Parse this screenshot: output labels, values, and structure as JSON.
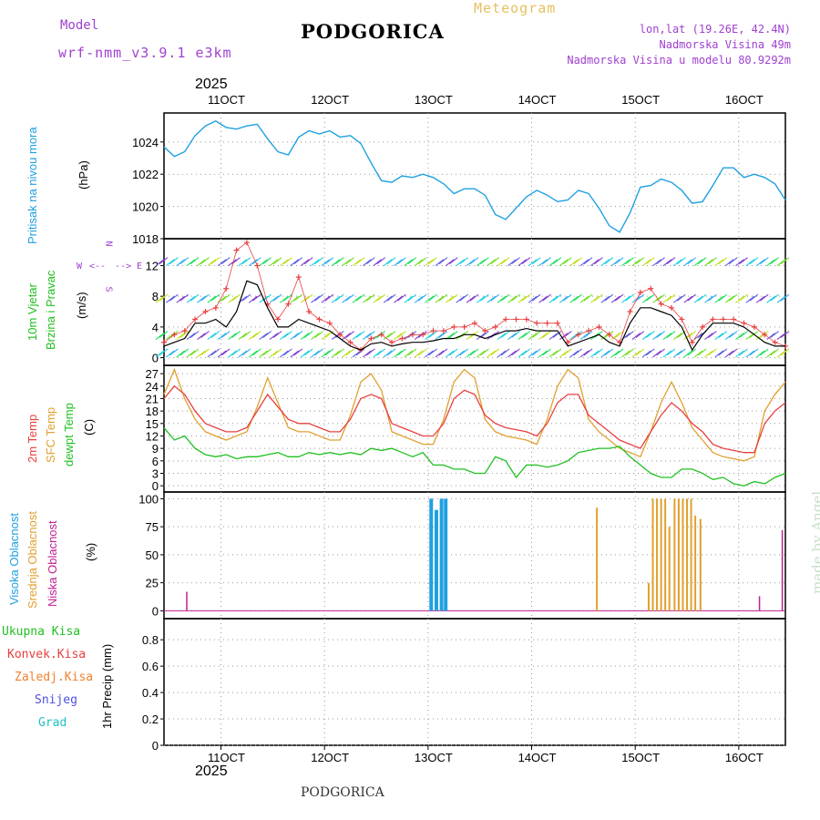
{
  "header": {
    "model_label": "Model",
    "model_name": "wrf-nmm_v3.9.1 e3km",
    "station": "PODGORICA",
    "meteogram": "Meteogram",
    "lonlat": "lon,lat (19.26E, 42.4N)",
    "elevation": "Nadmorska Visina 49m",
    "model_elevation": "Nadmorska Visina u modelu 80.9292m",
    "footer_station": "PODGORICA",
    "credit": "made by Angel",
    "year_top": "2025",
    "year_bottom": "2025"
  },
  "colors": {
    "pressure": "#20a0e0",
    "temp2m": "#e84040",
    "sfc": "#e0a030",
    "dewpt": "#20c020",
    "high_cloud": "#20a0e0",
    "mid_cloud": "#e0a030",
    "low_cloud": "#c02090",
    "wind_obs": "#e84040",
    "wind_model": "#000000",
    "violet": "#a040d0"
  },
  "chart_data": [
    {
      "type": "line",
      "id": "pressure",
      "ylabel": "Pritisak na nivou mora",
      "unit": "(hPa)",
      "ylim": [
        1018,
        1025.8
      ],
      "yticks": [
        1018,
        1020,
        1022,
        1024
      ],
      "xlim": [
        10.45,
        16.45
      ],
      "xticks": [
        {
          "x": 11,
          "label": "11OCT"
        },
        {
          "x": 12,
          "label": "12OCT"
        },
        {
          "x": 13,
          "label": "13OCT"
        },
        {
          "x": 14,
          "label": "14OCT"
        },
        {
          "x": 15,
          "label": "15OCT"
        },
        {
          "x": 16,
          "label": "16OCT"
        }
      ],
      "x": [
        10.45,
        10.55,
        10.65,
        10.75,
        10.85,
        10.95,
        11.05,
        11.15,
        11.25,
        11.35,
        11.45,
        11.55,
        11.65,
        11.75,
        11.85,
        11.95,
        12.05,
        12.15,
        12.25,
        12.35,
        12.45,
        12.55,
        12.65,
        12.75,
        12.85,
        12.95,
        13.05,
        13.15,
        13.25,
        13.35,
        13.45,
        13.55,
        13.65,
        13.75,
        13.85,
        13.95,
        14.05,
        14.15,
        14.25,
        14.35,
        14.45,
        14.55,
        14.65,
        14.75,
        14.85,
        14.95,
        15.05,
        15.15,
        15.25,
        15.35,
        15.45,
        15.55,
        15.65,
        15.75,
        15.85,
        15.95,
        16.05,
        16.15,
        16.25,
        16.35,
        16.45
      ],
      "values": [
        1023.7,
        1023.1,
        1023.4,
        1024.4,
        1025.0,
        1025.3,
        1024.9,
        1024.8,
        1025.0,
        1025.1,
        1024.2,
        1023.4,
        1023.2,
        1024.3,
        1024.7,
        1024.5,
        1024.7,
        1024.3,
        1024.4,
        1023.9,
        1022.7,
        1021.6,
        1021.5,
        1021.9,
        1021.8,
        1022.0,
        1021.8,
        1021.4,
        1020.8,
        1021.1,
        1021.1,
        1020.7,
        1019.5,
        1019.2,
        1019.9,
        1020.6,
        1021.0,
        1020.7,
        1020.3,
        1020.4,
        1021.0,
        1020.8,
        1019.9,
        1018.8,
        1018.4,
        1019.6,
        1021.2,
        1021.3,
        1021.7,
        1021.5,
        1021.0,
        1020.2,
        1020.3,
        1021.3,
        1022.4,
        1022.4,
        1021.8,
        1022.0,
        1021.8,
        1021.4,
        1020.4
      ]
    },
    {
      "type": "line",
      "id": "wind",
      "ylabel": "10m Vjetar",
      "ylabel2": "Brzina i Pravac",
      "unit": "(m/s)",
      "ylim": [
        -1,
        15.5
      ],
      "yticks": [
        0,
        4,
        8,
        12
      ],
      "direction_legend": [
        "N",
        "W",
        "E",
        "S"
      ],
      "direction_arrows": [
        "<--",
        "-->"
      ],
      "xlim": [
        10.45,
        16.45
      ],
      "series": [
        {
          "name": "model speed",
          "x": [
            10.45,
            10.55,
            10.65,
            10.75,
            10.85,
            10.95,
            11.05,
            11.15,
            11.25,
            11.35,
            11.45,
            11.55,
            11.65,
            11.75,
            11.85,
            11.95,
            12.05,
            12.15,
            12.25,
            12.35,
            12.45,
            12.55,
            12.65,
            12.75,
            12.85,
            12.95,
            13.05,
            13.15,
            13.25,
            13.35,
            13.45,
            13.55,
            13.65,
            13.75,
            13.85,
            13.95,
            14.05,
            14.15,
            14.25,
            14.35,
            14.45,
            14.55,
            14.65,
            14.75,
            14.85,
            14.95,
            15.05,
            15.15,
            15.25,
            15.35,
            15.45,
            15.55,
            15.65,
            15.75,
            15.85,
            15.95,
            16.05,
            16.15,
            16.25,
            16.35,
            16.45
          ],
          "values": [
            1.5,
            2.0,
            2.5,
            4.5,
            4.5,
            5.0,
            4.0,
            6.0,
            10.0,
            9.5,
            6.5,
            4.0,
            4.0,
            5.0,
            4.5,
            4.0,
            3.5,
            2.5,
            1.5,
            1.0,
            1.8,
            2.0,
            1.5,
            1.8,
            2.0,
            2.0,
            2.2,
            2.5,
            2.5,
            3.0,
            3.0,
            2.5,
            3.0,
            3.5,
            3.5,
            3.8,
            3.5,
            3.5,
            3.5,
            1.5,
            2.0,
            2.5,
            3.0,
            2.0,
            1.5,
            4.5,
            6.5,
            6.5,
            6.0,
            5.5,
            4.0,
            1.0,
            3.0,
            4.5,
            4.5,
            4.5,
            4.0,
            3.0,
            2.0,
            1.5,
            1.5
          ]
        },
        {
          "name": "gust",
          "x": [
            10.45,
            10.55,
            10.65,
            10.75,
            10.85,
            10.95,
            11.05,
            11.15,
            11.25,
            11.35,
            11.45,
            11.55,
            11.65,
            11.75,
            11.85,
            11.95,
            12.05,
            12.15,
            12.25,
            12.35,
            12.45,
            12.55,
            12.65,
            12.75,
            12.85,
            12.95,
            13.05,
            13.15,
            13.25,
            13.35,
            13.45,
            13.55,
            13.65,
            13.75,
            13.85,
            13.95,
            14.05,
            14.15,
            14.25,
            14.35,
            14.45,
            14.55,
            14.65,
            14.75,
            14.85,
            14.95,
            15.05,
            15.15,
            15.25,
            15.35,
            15.45,
            15.55,
            15.65,
            15.75,
            15.85,
            15.95,
            16.05,
            16.15,
            16.25,
            16.35,
            16.45
          ],
          "values": [
            2.0,
            3.0,
            3.5,
            5.0,
            6.0,
            6.5,
            9.0,
            14.0,
            15.0,
            12.0,
            7.0,
            5.0,
            7.0,
            10.5,
            6.0,
            5.0,
            4.5,
            3.0,
            2.0,
            1.0,
            2.5,
            3.0,
            2.0,
            2.5,
            3.0,
            3.0,
            3.5,
            3.5,
            4.0,
            4.0,
            4.5,
            3.5,
            4.0,
            5.0,
            5.0,
            5.0,
            4.5,
            4.5,
            4.5,
            2.0,
            3.0,
            3.5,
            4.0,
            3.0,
            2.0,
            6.0,
            8.5,
            9.0,
            7.0,
            6.5,
            5.0,
            2.0,
            4.0,
            5.0,
            5.0,
            5.0,
            4.5,
            4.0,
            3.0,
            2.0,
            1.5
          ]
        }
      ]
    },
    {
      "type": "line",
      "id": "temperature",
      "ylabels": [
        "2m Temp",
        "SFC Temp",
        "dewpt Temp"
      ],
      "unit": "(C)",
      "ylim": [
        -1.5,
        29
      ],
      "yticks": [
        0,
        3,
        6,
        9,
        12,
        15,
        18,
        21,
        24,
        27
      ],
      "xlim": [
        10.45,
        16.45
      ],
      "series": [
        {
          "name": "2m Temp",
          "x": [
            10.45,
            10.55,
            10.65,
            10.75,
            10.85,
            10.95,
            11.05,
            11.15,
            11.25,
            11.35,
            11.45,
            11.55,
            11.65,
            11.75,
            11.85,
            11.95,
            12.05,
            12.15,
            12.25,
            12.35,
            12.45,
            12.55,
            12.65,
            12.75,
            12.85,
            12.95,
            13.05,
            13.15,
            13.25,
            13.35,
            13.45,
            13.55,
            13.65,
            13.75,
            13.85,
            13.95,
            14.05,
            14.15,
            14.25,
            14.35,
            14.45,
            14.55,
            14.65,
            14.75,
            14.85,
            14.95,
            15.05,
            15.15,
            15.25,
            15.35,
            15.45,
            15.55,
            15.65,
            15.75,
            15.85,
            15.95,
            16.05,
            16.15,
            16.25,
            16.35,
            16.45
          ],
          "values": [
            21.0,
            24.0,
            22.0,
            18.0,
            15.0,
            14.0,
            13.0,
            13.0,
            14.0,
            18.0,
            22.0,
            19.0,
            16.0,
            15.0,
            15.0,
            14.0,
            13.0,
            13.0,
            16.0,
            21.0,
            22.0,
            21.0,
            15.0,
            14.0,
            13.0,
            12.0,
            12.0,
            15.0,
            21.0,
            23.0,
            22.0,
            17.0,
            15.0,
            14.0,
            13.5,
            13.0,
            12.0,
            15.0,
            20.0,
            22.0,
            22.0,
            17.0,
            15.0,
            13.0,
            11.0,
            10.0,
            9.0,
            13.0,
            17.0,
            20.0,
            18.0,
            15.0,
            13.0,
            10.0,
            9.0,
            8.5,
            8.0,
            8.0,
            15.0,
            18.0,
            20.0
          ]
        },
        {
          "name": "SFC Temp",
          "x": [
            10.45,
            10.55,
            10.65,
            10.75,
            10.85,
            10.95,
            11.05,
            11.15,
            11.25,
            11.35,
            11.45,
            11.55,
            11.65,
            11.75,
            11.85,
            11.95,
            12.05,
            12.15,
            12.25,
            12.35,
            12.45,
            12.55,
            12.65,
            12.75,
            12.85,
            12.95,
            13.05,
            13.15,
            13.25,
            13.35,
            13.45,
            13.55,
            13.65,
            13.75,
            13.85,
            13.95,
            14.05,
            14.15,
            14.25,
            14.35,
            14.45,
            14.55,
            14.65,
            14.75,
            14.85,
            14.95,
            15.05,
            15.15,
            15.25,
            15.35,
            15.45,
            15.55,
            15.65,
            15.75,
            15.85,
            15.95,
            16.05,
            16.15,
            16.25,
            16.35,
            16.45
          ],
          "values": [
            22.0,
            28.0,
            21.0,
            16.0,
            13.0,
            12.0,
            11.0,
            12.0,
            13.0,
            19.0,
            26.0,
            20.0,
            14.0,
            13.0,
            13.0,
            12.0,
            11.0,
            11.0,
            17.0,
            25.0,
            27.0,
            23.0,
            13.0,
            12.0,
            11.0,
            10.0,
            10.0,
            16.0,
            25.0,
            28.0,
            26.0,
            16.0,
            13.0,
            12.0,
            11.5,
            11.0,
            10.0,
            16.0,
            24.0,
            28.0,
            26.0,
            16.0,
            13.0,
            11.0,
            9.0,
            8.0,
            7.0,
            13.0,
            20.0,
            25.0,
            20.0,
            14.0,
            11.0,
            8.0,
            7.0,
            6.5,
            6.0,
            7.0,
            18.0,
            22.0,
            25.0
          ]
        },
        {
          "name": "dewpt Temp",
          "x": [
            10.45,
            10.55,
            10.65,
            10.75,
            10.85,
            10.95,
            11.05,
            11.15,
            11.25,
            11.35,
            11.45,
            11.55,
            11.65,
            11.75,
            11.85,
            11.95,
            12.05,
            12.15,
            12.25,
            12.35,
            12.45,
            12.55,
            12.65,
            12.75,
            12.85,
            12.95,
            13.05,
            13.15,
            13.25,
            13.35,
            13.45,
            13.55,
            13.65,
            13.75,
            13.85,
            13.95,
            14.05,
            14.15,
            14.25,
            14.35,
            14.45,
            14.55,
            14.65,
            14.75,
            14.85,
            14.95,
            15.05,
            15.15,
            15.25,
            15.35,
            15.45,
            15.55,
            15.65,
            15.75,
            15.85,
            15.95,
            16.05,
            16.15,
            16.25,
            16.35,
            16.45
          ],
          "values": [
            14.0,
            11.0,
            12.0,
            9.0,
            7.5,
            7.0,
            7.5,
            6.5,
            7.0,
            7.0,
            7.5,
            8.0,
            7.0,
            7.0,
            8.0,
            7.5,
            8.0,
            7.5,
            8.0,
            7.5,
            9.0,
            8.5,
            9.0,
            8.0,
            7.0,
            8.0,
            5.0,
            5.0,
            4.0,
            4.0,
            3.0,
            3.0,
            7.0,
            6.0,
            2.0,
            5.0,
            5.0,
            4.5,
            5.0,
            6.0,
            8.0,
            8.5,
            9.0,
            9.0,
            9.5,
            7.0,
            5.0,
            3.0,
            2.0,
            2.0,
            4.0,
            4.0,
            3.0,
            1.5,
            2.0,
            0.5,
            0.0,
            1.0,
            0.5,
            2.0,
            3.0
          ]
        }
      ]
    },
    {
      "type": "bar",
      "id": "clouds",
      "ylabels": [
        "Visoka Oblacnost",
        "Srednja Oblacnost",
        "Niska Oblacnost"
      ],
      "unit": "(%)",
      "ylim": [
        -7,
        106
      ],
      "yticks": [
        0,
        25,
        50,
        75,
        100
      ],
      "xlim": [
        10.45,
        16.45
      ],
      "series": [
        {
          "name": "Visoka Oblacnost",
          "x": [
            13.03,
            13.08,
            13.13,
            13.17
          ],
          "values": [
            100,
            90,
            100,
            100
          ]
        },
        {
          "name": "Srednja Oblacnost",
          "x": [
            14.63,
            15.13,
            15.17,
            15.21,
            15.25,
            15.29,
            15.33,
            15.38,
            15.42,
            15.46,
            15.5,
            15.54,
            15.58,
            15.63
          ],
          "values": [
            92,
            25,
            100,
            100,
            100,
            100,
            75,
            100,
            100,
            100,
            100,
            100,
            85,
            82
          ]
        },
        {
          "name": "Niska Oblacnost",
          "x": [
            10.67,
            16.2,
            16.42
          ],
          "values": [
            17,
            13,
            72
          ]
        }
      ]
    },
    {
      "type": "bar",
      "id": "precip",
      "ylabels": [
        "Ukupna Kisa",
        "Konvek.Kisa",
        "Zaledj.Kisa",
        "Snijeg",
        "Grad"
      ],
      "unit": "1hr Precip (mm)",
      "ylim": [
        0,
        0.96
      ],
      "yticks": [
        0,
        0.2,
        0.4,
        0.6,
        0.8
      ],
      "ytick_labels": [
        "0",
        "0.2",
        "0.4",
        "0.6",
        "0.8"
      ],
      "xlim": [
        10.45,
        16.45
      ],
      "series": []
    }
  ]
}
